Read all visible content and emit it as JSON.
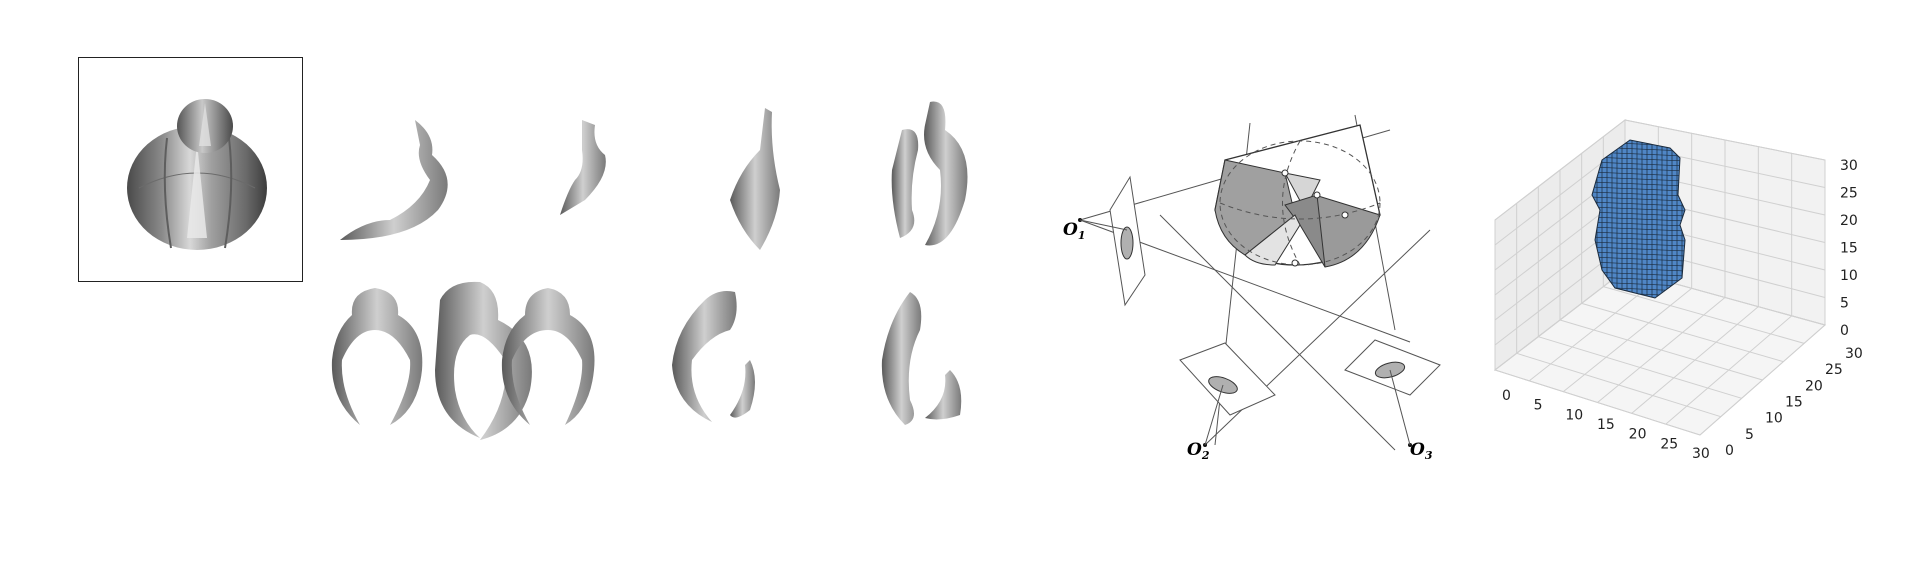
{
  "diagram": {
    "cameras": [
      {
        "label": "O",
        "sub": "1"
      },
      {
        "label": "O",
        "sub": "2"
      },
      {
        "label": "O",
        "sub": "3"
      }
    ]
  },
  "voxel_plot": {
    "x_ticks": [
      "0",
      "5",
      "10",
      "15",
      "20",
      "25",
      "30"
    ],
    "y_ticks": [
      "0",
      "5",
      "10",
      "15",
      "20",
      "25",
      "30"
    ],
    "z_ticks": [
      "0",
      "5",
      "10",
      "15",
      "20",
      "25",
      "30"
    ],
    "voxel_color": "#4f86c6",
    "edge_color": "#1b2b3d"
  }
}
